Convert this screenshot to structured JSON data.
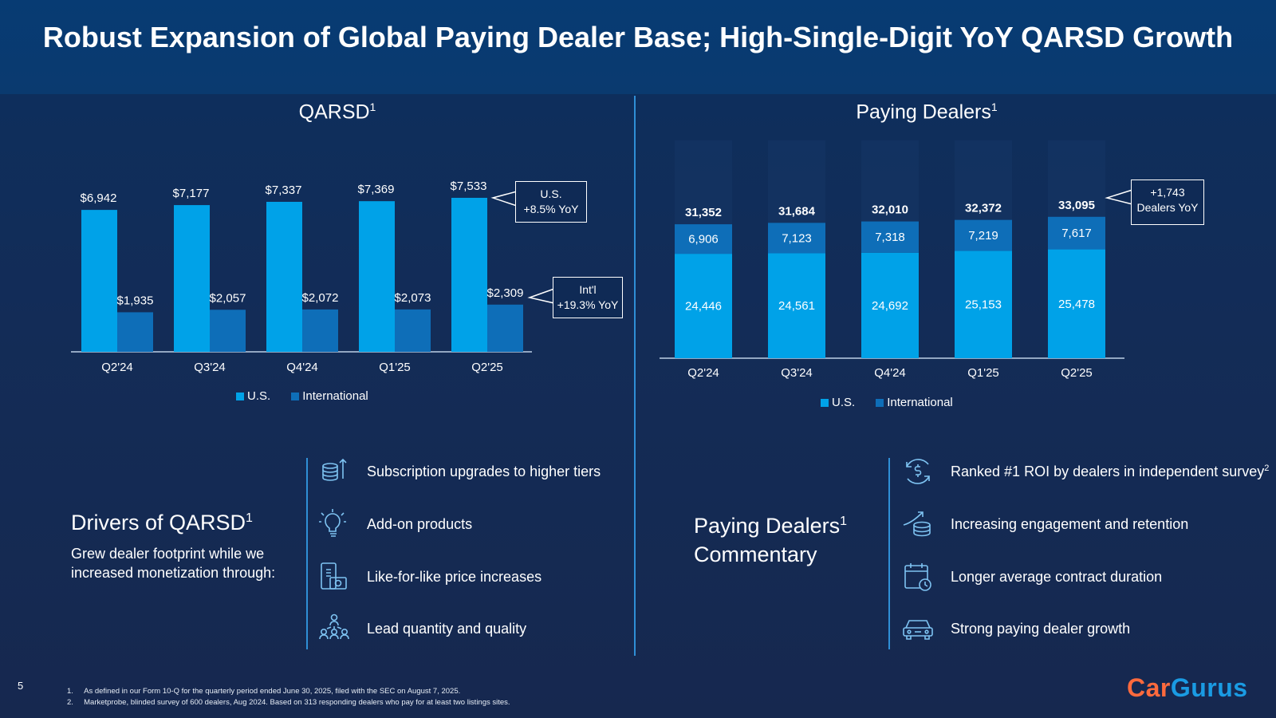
{
  "title": "Robust Expansion of Global Paying Dealer Base; High-Single-Digit YoY QARSD Growth",
  "colors": {
    "us": "#00a2e8",
    "international": "#0e6eb8",
    "accent_line": "#2f8fd6",
    "logo_orange": "#ff6a3d",
    "logo_blue": "#1a9be3"
  },
  "qarsd_chart": {
    "title": "QARSD",
    "title_sup": "1",
    "legend": [
      "U.S.",
      "International"
    ],
    "callout_us": {
      "line1": "U.S.",
      "line2": "+8.5% YoY"
    },
    "callout_intl": {
      "line1": "Int'l",
      "line2": "+19.3% YoY"
    }
  },
  "dealers_chart": {
    "title": "Paying Dealers",
    "title_sup": "1",
    "legend": [
      "U.S.",
      "International"
    ],
    "callout": {
      "line1": "+1,743",
      "line2": "Dealers YoY"
    }
  },
  "chart_data": [
    {
      "type": "bar",
      "title": "QARSD1",
      "categories": [
        "Q2'24",
        "Q3'24",
        "Q4'24",
        "Q1'25",
        "Q2'25"
      ],
      "series": [
        {
          "name": "U.S.",
          "values": [
            6942,
            7177,
            7337,
            7369,
            7533
          ],
          "labels": [
            "$6,942",
            "$7,177",
            "$7,337",
            "$7,369",
            "$7,533"
          ]
        },
        {
          "name": "International",
          "values": [
            1935,
            2057,
            2072,
            2073,
            2309
          ],
          "labels": [
            "$1,935",
            "$2,057",
            "$2,072",
            "$2,073",
            "$2,309"
          ]
        }
      ],
      "ylim": [
        0,
        8000
      ],
      "legend_position": "bottom",
      "grid": false
    },
    {
      "type": "bar",
      "stacked": true,
      "title": "Paying Dealers1",
      "categories": [
        "Q2'24",
        "Q3'24",
        "Q4'24",
        "Q1'25",
        "Q2'25"
      ],
      "series": [
        {
          "name": "U.S.",
          "values": [
            24446,
            24561,
            24692,
            25153,
            25478
          ],
          "labels": [
            "24,446",
            "24,561",
            "24,692",
            "25,153",
            "25,478"
          ]
        },
        {
          "name": "International",
          "values": [
            6906,
            7123,
            7318,
            7219,
            7617
          ],
          "labels": [
            "6,906",
            "7,123",
            "7,318",
            "7,219",
            "7,617"
          ]
        }
      ],
      "totals": [
        31352,
        31684,
        32010,
        32372,
        33095
      ],
      "total_labels": [
        "31,352",
        "31,684",
        "32,010",
        "32,372",
        "33,095"
      ],
      "ylim": [
        0,
        40000
      ],
      "legend_position": "bottom",
      "grid": false
    }
  ],
  "drivers": {
    "heading": "Drivers of QARSD",
    "heading_sup": "1",
    "subtext_line1": "Grew dealer footprint while we",
    "subtext_line2": "increased monetization through:",
    "items": [
      {
        "text": "Subscription upgrades to higher tiers",
        "icon": "coin-stack-arrow-icon"
      },
      {
        "text": "Add-on products",
        "icon": "lightbulb-icon"
      },
      {
        "text": "Like-for-like price increases",
        "icon": "price-tag-cash-icon"
      },
      {
        "text": "Lead quantity and quality",
        "icon": "people-network-icon"
      }
    ]
  },
  "commentary": {
    "heading_line1": "Paying Dealers",
    "heading_sup": "1",
    "heading_line2": "Commentary",
    "items": [
      {
        "text": "Ranked #1 ROI by dealers in independent survey",
        "sup": "2",
        "icon": "dollar-cycle-icon"
      },
      {
        "text": "Increasing engagement and retention",
        "sup": "",
        "icon": "coins-growth-icon"
      },
      {
        "text": "Longer average contract duration",
        "sup": "",
        "icon": "calendar-clock-icon"
      },
      {
        "text": "Strong paying dealer growth",
        "sup": "",
        "icon": "car-icon"
      }
    ]
  },
  "page_number": "5",
  "footnotes": [
    "1.     As defined in our Form 10-Q for the quarterly period ended June 30, 2025, filed with the SEC on August 7, 2025.",
    "2.     Marketprobe, blinded survey of 600 dealers, Aug 2024. Based on 313 responding dealers who pay for at least two listings sites."
  ],
  "logo": {
    "part1": "Car",
    "part2": "Gurus"
  }
}
